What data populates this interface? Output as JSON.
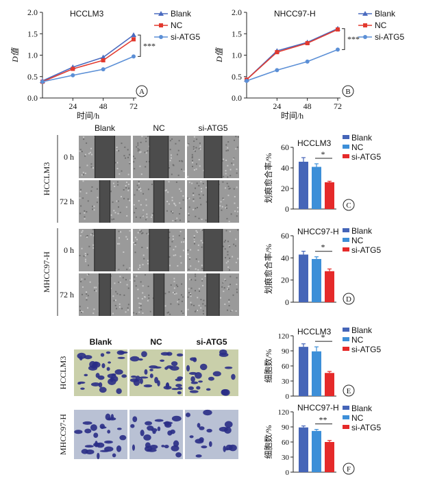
{
  "colors": {
    "blank": "#4a6bbf",
    "nc": "#e23a2f",
    "si": "#5b8fd6",
    "bar_blank": "#4565b8",
    "bar_nc": "#3d8fd8",
    "bar_si": "#e52a2a",
    "axis": "#222222",
    "stain": "#2a2d86",
    "wound": "#4c4c4c"
  },
  "chart_data": [
    {
      "type": "line",
      "panel": "A",
      "title": "HCCLM3",
      "x": [
        0,
        24,
        48,
        72
      ],
      "xticks": [
        "24",
        "48",
        "72"
      ],
      "xlabel": "时间/h",
      "ylabel": "D值",
      "ylim": [
        0,
        2.0
      ],
      "yticks": [
        "0.0",
        "0.5",
        "1.0",
        "1.5",
        "2.0"
      ],
      "significance": "***",
      "series": [
        {
          "name": "Blank",
          "values": [
            0.4,
            0.72,
            0.95,
            1.47
          ]
        },
        {
          "name": "NC",
          "values": [
            0.38,
            0.68,
            0.88,
            1.37
          ]
        },
        {
          "name": "si-ATG5",
          "values": [
            0.38,
            0.53,
            0.67,
            0.97
          ]
        }
      ]
    },
    {
      "type": "line",
      "panel": "B",
      "title": "NHCC97-H",
      "x": [
        0,
        24,
        48,
        72
      ],
      "xticks": [
        "24",
        "48",
        "72"
      ],
      "xlabel": "时间/h",
      "ylabel": "D值",
      "ylim": [
        0,
        2.0
      ],
      "yticks": [
        "0.0",
        "0.5",
        "1.0",
        "1.5",
        "2.0"
      ],
      "significance": "***",
      "series": [
        {
          "name": "Blank",
          "values": [
            0.43,
            1.1,
            1.3,
            1.62
          ]
        },
        {
          "name": "NC",
          "values": [
            0.43,
            1.07,
            1.28,
            1.6
          ]
        },
        {
          "name": "si-ATG5",
          "values": [
            0.4,
            0.65,
            0.85,
            1.13
          ]
        }
      ]
    },
    {
      "type": "bar",
      "panel": "C",
      "title": "HCCLM3",
      "categories": [
        "Blank",
        "NC",
        "si-ATG5"
      ],
      "values": [
        46,
        41,
        26
      ],
      "errors": [
        4,
        3,
        1
      ],
      "ylabel": "划痕愈合率/%",
      "ylim": [
        0,
        60
      ],
      "yticks": [
        "0",
        "20",
        "40",
        "60"
      ],
      "significance": "*"
    },
    {
      "type": "bar",
      "panel": "D",
      "title": "NHCC97-H",
      "categories": [
        "Blank",
        "NC",
        "si-ATG5"
      ],
      "values": [
        43,
        39,
        28
      ],
      "errors": [
        3,
        2,
        2
      ],
      "ylabel": "划痕愈合率/%",
      "ylim": [
        0,
        60
      ],
      "yticks": [
        "0",
        "20",
        "40",
        "60"
      ],
      "significance": "*"
    },
    {
      "type": "bar",
      "panel": "E",
      "title": "HCCLM3",
      "categories": [
        "Blank",
        "NC",
        "si-ATG5"
      ],
      "values": [
        98,
        89,
        46
      ],
      "errors": [
        6,
        9,
        3
      ],
      "ylabel": "细胞数/%",
      "ylim": [
        0,
        120
      ],
      "yticks": [
        "0",
        "30",
        "60",
        "90",
        "120"
      ],
      "significance": "*"
    },
    {
      "type": "bar",
      "panel": "F",
      "title": "NHCC97-H",
      "categories": [
        "Blank",
        "NC",
        "si-ATG5"
      ],
      "values": [
        89,
        82,
        60
      ],
      "errors": [
        3,
        3,
        3
      ],
      "ylabel": "细胞数/%",
      "ylim": [
        0,
        120
      ],
      "yticks": [
        "0",
        "30",
        "60",
        "90",
        "120"
      ],
      "significance": "**"
    }
  ],
  "scratch": {
    "columns": [
      "Blank",
      "NC",
      "si-ATG5"
    ],
    "times": [
      "0 h",
      "72 h"
    ],
    "groups": [
      "HCCLM3",
      "MHCC97-H"
    ],
    "gap_fraction": [
      [
        0.38,
        0.36,
        0.34
      ],
      [
        0.2,
        0.2,
        0.22
      ],
      [
        0.4,
        0.37,
        0.36
      ],
      [
        0.22,
        0.2,
        0.24
      ]
    ]
  },
  "transwell": {
    "columns": [
      "Blank",
      "NC",
      "si-ATG5"
    ],
    "groups": [
      "HCCLM3",
      "MHCC97-H"
    ]
  }
}
